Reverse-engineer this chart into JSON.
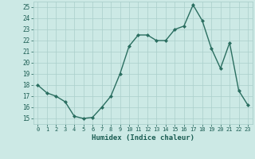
{
  "x": [
    0,
    1,
    2,
    3,
    4,
    5,
    6,
    7,
    8,
    9,
    10,
    11,
    12,
    13,
    14,
    15,
    16,
    17,
    18,
    19,
    20,
    21,
    22,
    23
  ],
  "y": [
    18,
    17.3,
    17,
    16.5,
    15.2,
    15.0,
    15.1,
    16.0,
    17.0,
    19.0,
    21.5,
    22.5,
    22.5,
    22.0,
    22.0,
    23.0,
    23.3,
    25.2,
    23.8,
    21.3,
    19.5,
    21.8,
    17.5,
    16.2
  ],
  "xlabel": "Humidex (Indice chaleur)",
  "xlim": [
    -0.5,
    23.5
  ],
  "ylim": [
    14.5,
    25.5
  ],
  "yticks": [
    15,
    16,
    17,
    18,
    19,
    20,
    21,
    22,
    23,
    24,
    25
  ],
  "xticks": [
    0,
    1,
    2,
    3,
    4,
    5,
    6,
    7,
    8,
    9,
    10,
    11,
    12,
    13,
    14,
    15,
    16,
    17,
    18,
    19,
    20,
    21,
    22,
    23
  ],
  "line_color": "#2a6e60",
  "marker_color": "#2a6e60",
  "bg_color": "#cce9e5",
  "grid_color": "#aacfcb",
  "tick_label_color": "#1a5c52",
  "xlabel_color": "#1a5c52"
}
